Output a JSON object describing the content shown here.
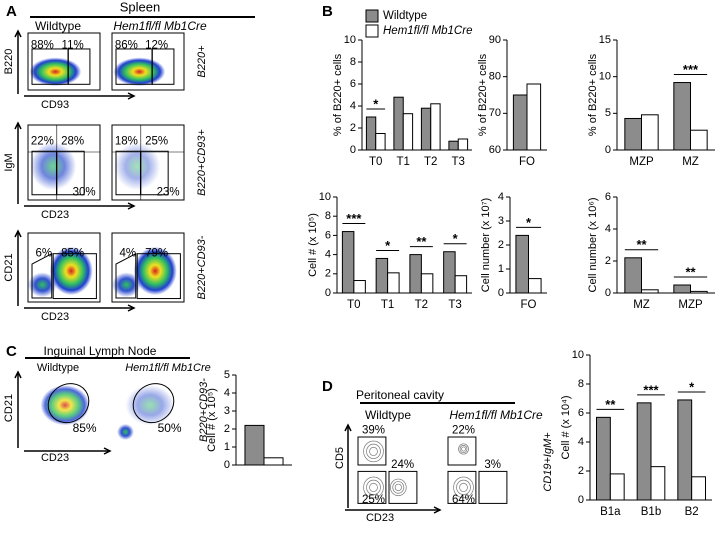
{
  "panel_labels": [
    "A",
    "B",
    "C",
    "D"
  ],
  "panel_a": {
    "tissue": "Spleen",
    "groups": [
      "Wildtype",
      "Hem1fl/fl Mb1Cre"
    ],
    "rows": [
      {
        "y_label": "B220",
        "x_label": "CD93",
        "gate_label": "B220+",
        "percents": [
          [
            "88%",
            "11%"
          ],
          [
            "86%",
            "12%"
          ]
        ]
      },
      {
        "y_label": "IgM",
        "x_label": "CD23",
        "gate_label": "B220+CD93+",
        "percents": [
          [
            "22%",
            "28%",
            "30%"
          ],
          [
            "18%",
            "25%",
            "23%"
          ]
        ]
      },
      {
        "y_label": "CD21",
        "x_label": "CD23",
        "gate_label": "B220+CD93-",
        "percents": [
          [
            "6%",
            "85%"
          ],
          [
            "4%",
            "79%"
          ]
        ]
      }
    ]
  },
  "panel_c": {
    "tissue": "Inguinal Lymph Node",
    "groups": [
      "Wildtype",
      "Hem1fl/fl Mb1Cre"
    ],
    "y_label": "CD21",
    "x_label": "CD23",
    "gate_label": "B220+CD93-",
    "percents": [
      "85%",
      "50%"
    ]
  },
  "panel_d": {
    "tissue": "Peritoneal cavity",
    "groups": [
      "Wildtype",
      "Hem1fl/fl Mb1Cre"
    ],
    "y_label": "CD5",
    "x_label": "CD23",
    "gate_label": "CD19+IgM+",
    "percents": [
      [
        "39%",
        "24%",
        "25%"
      ],
      [
        "22%",
        "3%",
        "64%"
      ]
    ]
  },
  "chart_data": [
    {
      "type": "bar",
      "y_label": "% of B220+ cells",
      "categories": [
        "T0",
        "T1",
        "T2",
        "T3"
      ],
      "legend": true,
      "series": [
        {
          "name": "Wildtype",
          "color": "#8c8c8c",
          "values": [
            3.0,
            4.8,
            3.8,
            0.8
          ]
        },
        {
          "name": "Hem1fl/fl Mb1Cre",
          "color": "#ffffff",
          "values": [
            1.5,
            3.3,
            4.2,
            1.0
          ]
        }
      ],
      "ylim": [
        0,
        10
      ],
      "yticks": [
        0,
        2,
        4,
        6,
        8,
        10
      ],
      "significance": [
        "*",
        null,
        null,
        null
      ]
    },
    {
      "type": "bar",
      "y_label": "% of B220+ cells",
      "categories": [
        "FO"
      ],
      "series": [
        {
          "color": "#8c8c8c",
          "values": [
            75
          ]
        },
        {
          "color": "#ffffff",
          "values": [
            78
          ]
        }
      ],
      "ylim": [
        60,
        90
      ],
      "yticks": [
        60,
        70,
        80,
        90
      ],
      "significance": [
        null
      ]
    },
    {
      "type": "bar",
      "y_label": "% of B220+ cells",
      "categories": [
        "MZP",
        "MZ"
      ],
      "series": [
        {
          "color": "#8c8c8c",
          "values": [
            4.3,
            9.2
          ]
        },
        {
          "color": "#ffffff",
          "values": [
            4.8,
            2.7
          ]
        }
      ],
      "ylim": [
        0,
        15
      ],
      "yticks": [
        0,
        5,
        10,
        15
      ],
      "significance": [
        null,
        "***"
      ]
    },
    {
      "type": "bar",
      "y_label": "Cell # (x 10⁵)",
      "categories": [
        "T0",
        "T1",
        "T2",
        "T3"
      ],
      "series": [
        {
          "color": "#8c8c8c",
          "values": [
            6.4,
            3.6,
            4.0,
            4.3
          ]
        },
        {
          "color": "#ffffff",
          "values": [
            1.3,
            2.1,
            2.0,
            1.8
          ]
        }
      ],
      "ylim": [
        0,
        10
      ],
      "yticks": [
        0,
        2,
        4,
        6,
        8,
        10
      ],
      "significance": [
        "***",
        "*",
        "**",
        "*"
      ]
    },
    {
      "type": "bar",
      "y_label": "Cell number (x 10⁷)",
      "categories": [
        "FO"
      ],
      "series": [
        {
          "color": "#8c8c8c",
          "values": [
            2.4
          ]
        },
        {
          "color": "#ffffff",
          "values": [
            0.6
          ]
        }
      ],
      "ylim": [
        0,
        4
      ],
      "yticks": [
        0,
        1,
        2,
        3,
        4
      ],
      "significance": [
        "*"
      ]
    },
    {
      "type": "bar",
      "y_label": "Cell number (x 10⁶)",
      "categories": [
        "MZ",
        "MZP"
      ],
      "series": [
        {
          "color": "#8c8c8c",
          "values": [
            2.2,
            0.5
          ]
        },
        {
          "color": "#ffffff",
          "values": [
            0.2,
            0.1
          ]
        }
      ],
      "ylim": [
        0,
        6
      ],
      "yticks": [
        0,
        2,
        4,
        6
      ],
      "significance": [
        "**",
        "**"
      ]
    },
    {
      "type": "bar",
      "y_label": "Cell # (x 10⁵)",
      "categories": [
        null
      ],
      "series": [
        {
          "color": "#8c8c8c",
          "values": [
            2.2
          ]
        },
        {
          "color": "#ffffff",
          "values": [
            0.4
          ]
        }
      ],
      "ylim": [
        0,
        5
      ],
      "yticks": [
        0,
        1,
        2,
        3,
        4,
        5
      ],
      "significance": [
        null
      ]
    },
    {
      "type": "bar",
      "y_label": "Cell # (x 10⁴)",
      "categories": [
        "B1a",
        "B1b",
        "B2"
      ],
      "series": [
        {
          "color": "#8c8c8c",
          "values": [
            5.7,
            6.7,
            6.9
          ]
        },
        {
          "color": "#ffffff",
          "values": [
            1.8,
            2.3,
            1.6
          ]
        }
      ],
      "ylim": [
        0,
        10
      ],
      "yticks": [
        0,
        2,
        4,
        6,
        8,
        10
      ],
      "significance": [
        "**",
        "***",
        "*"
      ]
    }
  ]
}
